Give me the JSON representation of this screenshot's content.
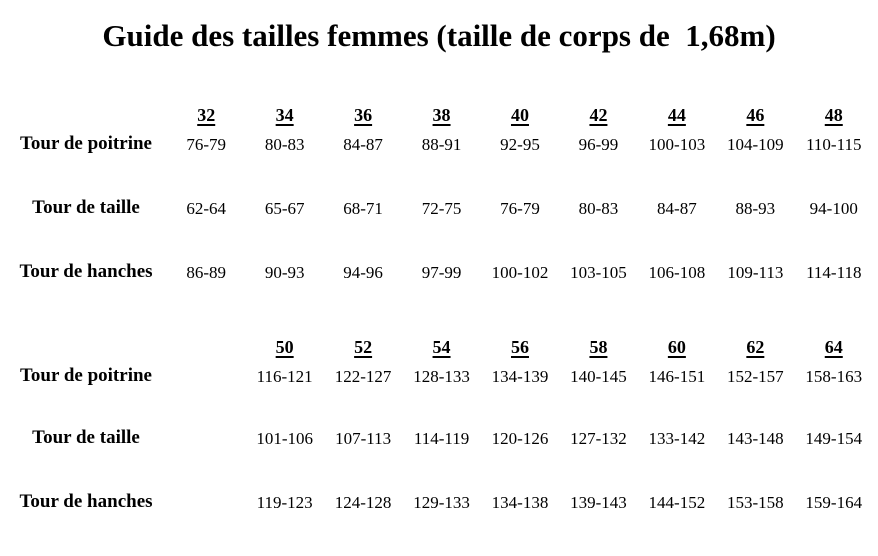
{
  "title": "Guide des tailles femmes (taille de corps de  1,68m)",
  "table1": {
    "sizes": [
      "32",
      "34",
      "36",
      "38",
      "40",
      "42",
      "44",
      "46",
      "48"
    ],
    "rows": [
      {
        "label": "Tour de poitrine",
        "values": [
          "76-79",
          "80-83",
          "84-87",
          "88-91",
          "92-95",
          "96-99",
          "100-103",
          "104-109",
          "110-115"
        ]
      },
      {
        "label": "Tour de taille",
        "values": [
          "62-64",
          "65-67",
          "68-71",
          "72-75",
          "76-79",
          "80-83",
          "84-87",
          "88-93",
          "94-100"
        ]
      },
      {
        "label": "Tour de hanches",
        "values": [
          "86-89",
          "90-93",
          "94-96",
          "97-99",
          "100-102",
          "103-105",
          "106-108",
          "109-113",
          "114-118"
        ]
      }
    ]
  },
  "table2": {
    "sizes": [
      "50",
      "52",
      "54",
      "56",
      "58",
      "60",
      "62",
      "64"
    ],
    "rows": [
      {
        "label": "Tour de poitrine",
        "values": [
          "116-121",
          "122-127",
          "128-133",
          "134-139",
          "140-145",
          "146-151",
          "152-157",
          "158-163"
        ]
      },
      {
        "label": "Tour de taille",
        "values": [
          "101-106",
          "107-113",
          "114-119",
          "120-126",
          "127-132",
          "133-142",
          "143-148",
          "149-154"
        ]
      },
      {
        "label": "Tour de hanches",
        "values": [
          "119-123",
          "124-128",
          "129-133",
          "134-138",
          "139-143",
          "144-152",
          "153-158",
          "159-164"
        ]
      }
    ]
  },
  "colors": {
    "text": "#000000",
    "background": "#ffffff"
  }
}
